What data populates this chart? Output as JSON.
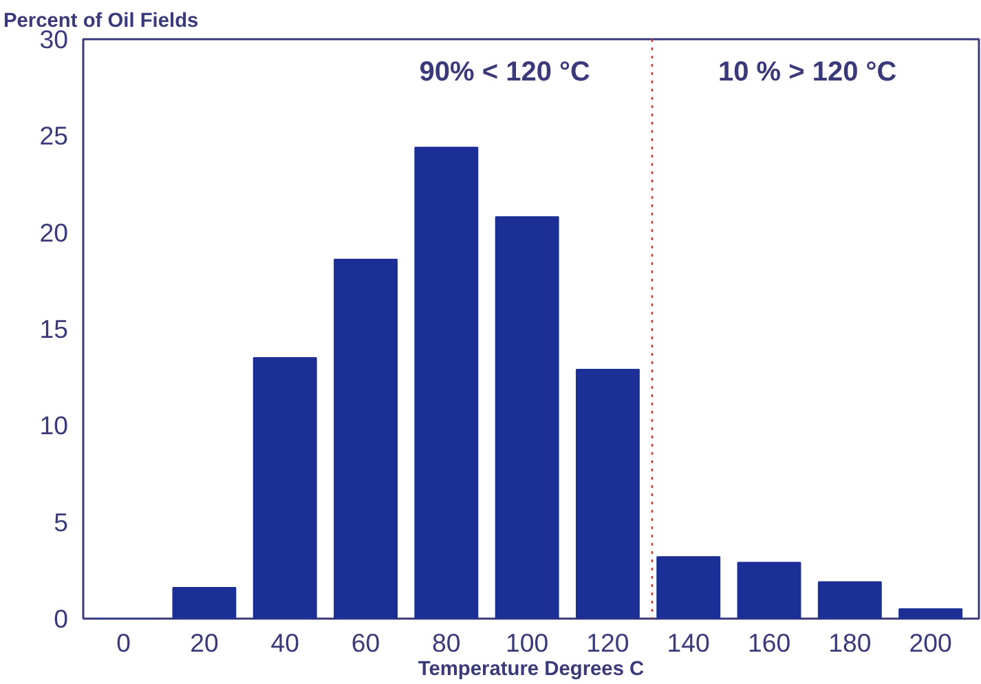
{
  "chart_data": {
    "type": "bar",
    "ylabel": "Percent of Oil Fields",
    "xlabel": "Temperature Degrees C",
    "x": [
      0,
      20,
      40,
      60,
      80,
      100,
      120,
      140,
      160,
      180,
      200
    ],
    "values": [
      0,
      1.6,
      13.5,
      18.6,
      24.4,
      20.8,
      12.9,
      3.2,
      2.9,
      1.9,
      0.5
    ],
    "color": "#1c2f96",
    "xlim": [
      -10,
      212
    ],
    "xticks": [
      0,
      20,
      40,
      60,
      80,
      100,
      120,
      140,
      160,
      180,
      200
    ],
    "ylim": [
      0,
      30
    ],
    "yticks": [
      0,
      5,
      10,
      15,
      20,
      25,
      30
    ],
    "ref_lines": [
      {
        "axis": "x",
        "value": 131,
        "color": "#e03030",
        "line_style": "dotted"
      }
    ],
    "annotations": [
      "90% < 120 °C",
      "10 % > 120 °C"
    ],
    "grid": false
  }
}
